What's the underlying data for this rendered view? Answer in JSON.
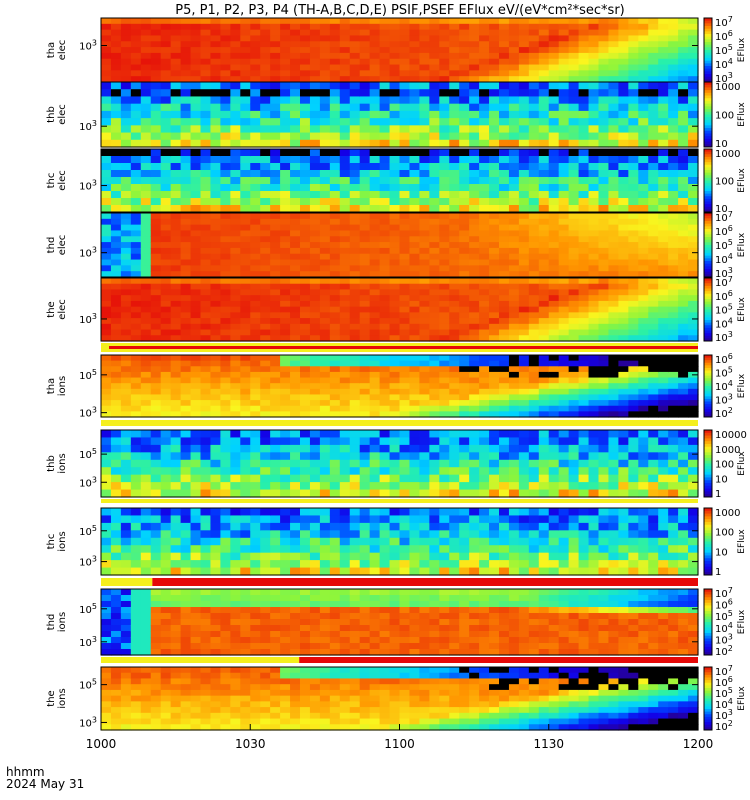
{
  "chart_data": {
    "type": "heatmap",
    "title": "P5, P1, P2, P3, P4 (TH-A,B,C,D,E) PSIF,PSEF EFlux eV/(eV*cm²*sec*sr)",
    "colorbar_label": "EFlux",
    "x_axis": {
      "label": [
        "hhmm",
        "2024 May 31"
      ],
      "ticks": [
        "1000",
        "1030",
        "1100",
        "1130",
        "1200"
      ]
    },
    "panels": [
      {
        "id": "tha-elec",
        "ylabel": [
          "tha",
          "elec"
        ],
        "yticks": [
          "10³"
        ],
        "colorbar_ticks": [
          "10³",
          "10⁴",
          "10⁵",
          "10⁶",
          "10⁷"
        ]
      },
      {
        "id": "thb-elec",
        "ylabel": [
          "thb",
          "elec"
        ],
        "yticks": [
          "10³"
        ],
        "colorbar_ticks": [
          "10",
          "100",
          "1000"
        ]
      },
      {
        "id": "thc-elec",
        "ylabel": [
          "thc",
          "elec"
        ],
        "yticks": [
          "10³"
        ],
        "colorbar_ticks": [
          "10",
          "100",
          "1000"
        ]
      },
      {
        "id": "thd-elec",
        "ylabel": [
          "thd",
          "elec"
        ],
        "yticks": [
          "10³"
        ],
        "colorbar_ticks": [
          "10³",
          "10⁴",
          "10⁵",
          "10⁶",
          "10⁷"
        ]
      },
      {
        "id": "the-elec",
        "ylabel": [
          "the",
          "elec"
        ],
        "yticks": [
          "10³"
        ],
        "colorbar_ticks": [
          "10³",
          "10⁴",
          "10⁵",
          "10⁶",
          "10⁷"
        ]
      },
      {
        "id": "tha-ions",
        "ylabel": [
          "tha",
          "ions"
        ],
        "yticks": [
          "10⁵",
          "10³"
        ],
        "colorbar_ticks": [
          "10²",
          "10³",
          "10⁴",
          "10⁵",
          "10⁶"
        ]
      },
      {
        "id": "thb-ions",
        "ylabel": [
          "thb",
          "ions"
        ],
        "yticks": [
          "10⁵",
          "10³"
        ],
        "colorbar_ticks": [
          "1",
          "10",
          "100",
          "1000",
          "10000"
        ]
      },
      {
        "id": "thc-ions",
        "ylabel": [
          "thc",
          "ions"
        ],
        "yticks": [
          "10⁵",
          "10³"
        ],
        "colorbar_ticks": [
          "1",
          "10",
          "100",
          "1000"
        ]
      },
      {
        "id": "thd-ions",
        "ylabel": [
          "thd",
          "ions"
        ],
        "yticks": [
          "10⁵",
          "10³"
        ],
        "colorbar_ticks": [
          "10²",
          "10³",
          "10⁴",
          "10⁵",
          "10⁶",
          "10⁷"
        ]
      },
      {
        "id": "the-ions",
        "ylabel": [
          "the",
          "ions"
        ],
        "yticks": [
          "10⁵",
          "10³"
        ],
        "colorbar_ticks": [
          "10²",
          "10³",
          "10⁴",
          "10⁵",
          "10⁶",
          "10⁷"
        ]
      }
    ]
  }
}
